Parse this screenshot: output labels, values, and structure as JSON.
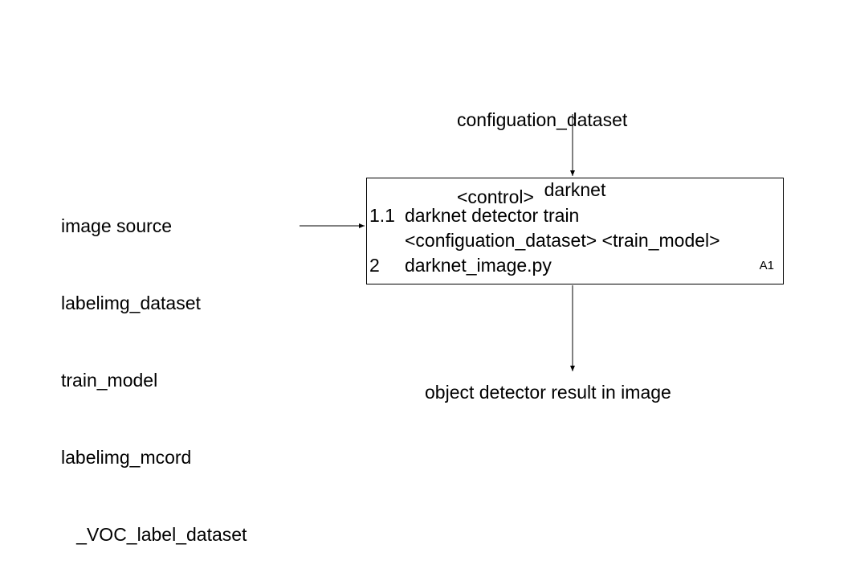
{
  "control": {
    "lines": [
      "configuation_dataset",
      "<control>"
    ]
  },
  "inputs": {
    "lines": [
      "image source",
      "labelimg_dataset",
      "train_model",
      "labelimg_mcord",
      "   _VOC_label_dataset"
    ]
  },
  "process": {
    "title": "darknet",
    "steps": [
      {
        "number": "1.1",
        "lines": [
          "darknet detector train",
          "<configuation_dataset> <train_model>"
        ]
      },
      {
        "number": "2",
        "lines": [
          "darknet_image.py"
        ]
      }
    ],
    "id": "A1"
  },
  "output": {
    "label": "object detector result in image"
  }
}
